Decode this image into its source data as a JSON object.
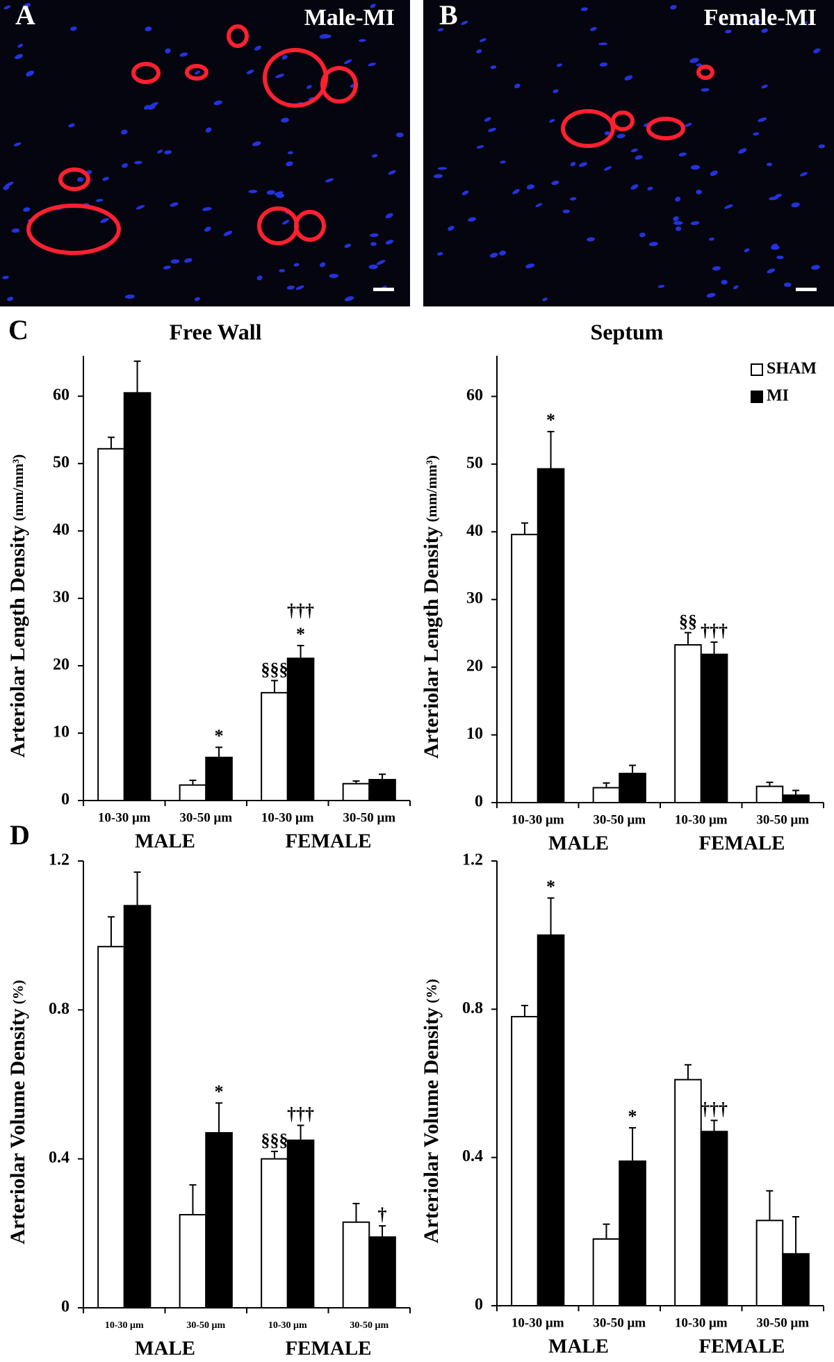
{
  "panels": [
    {
      "letter": "A",
      "label": "Male-MI"
    },
    {
      "letter": "B",
      "label": "Female-MI"
    }
  ],
  "chart_data": [
    {
      "type": "bar",
      "panel_label": "C",
      "title": "Free Wall",
      "ylabel": "Arteriolar Length Density",
      "yunit": "(mm/mm³)",
      "categories": [
        "10-30 μm",
        "30-50 μm",
        "10-30 μm",
        "30-50 μm"
      ],
      "groups": [
        "MALE",
        "FEMALE"
      ],
      "ylim": [
        0,
        66
      ],
      "yticks": [
        0,
        10,
        20,
        30,
        40,
        50,
        60
      ],
      "series": [
        {
          "name": "SHAM",
          "color": "#ffffff",
          "values": [
            52.2,
            2.3,
            16,
            2.5
          ],
          "errors": [
            1.7,
            0.7,
            1.8,
            0.4
          ],
          "annotations": [
            null,
            null,
            [
              "§§§"
            ],
            null
          ]
        },
        {
          "name": "MI",
          "color": "#000000",
          "values": [
            60.5,
            6.4,
            21.1,
            3.1
          ],
          "errors": [
            4.7,
            1.5,
            1.9,
            0.8
          ],
          "annotations": [
            null,
            [
              "*"
            ],
            [
              "†††",
              "*"
            ],
            null
          ]
        }
      ]
    },
    {
      "type": "bar",
      "title": "Septum",
      "ylabel": "Arteriolar Length Density",
      "yunit": "(mm/mm³)",
      "legend": "top-right",
      "categories": [
        "10-30 μm",
        "30-50 μm",
        "10-30 μm",
        "30-50 μm"
      ],
      "groups": [
        "MALE",
        "FEMALE"
      ],
      "ylim": [
        0,
        66
      ],
      "yticks": [
        0,
        10,
        20,
        30,
        40,
        50,
        60
      ],
      "series": [
        {
          "name": "SHAM",
          "color": "#ffffff",
          "values": [
            39.6,
            2.2,
            23.3,
            2.4
          ],
          "errors": [
            1.7,
            0.7,
            1.8,
            0.6
          ],
          "annotations": [
            null,
            null,
            [
              "§§"
            ],
            null
          ]
        },
        {
          "name": "MI",
          "color": "#000000",
          "values": [
            49.3,
            4.3,
            21.9,
            1.1
          ],
          "errors": [
            5.5,
            1.2,
            1.8,
            0.7
          ],
          "annotations": [
            [
              "*"
            ],
            null,
            [
              "†††"
            ],
            null
          ]
        }
      ]
    },
    {
      "type": "bar",
      "panel_label": "D",
      "ylabel": "Arteriolar Volume Density",
      "yunit": "(%)",
      "categories": [
        "10-30 μm",
        "30-50 μm",
        "10-30 μm",
        "30-50 μm"
      ],
      "groups": [
        "MALE",
        "FEMALE"
      ],
      "ylim": [
        0,
        1.2
      ],
      "yticks": [
        0,
        0.4,
        0.8,
        1.2
      ],
      "series": [
        {
          "name": "SHAM",
          "color": "#ffffff",
          "values": [
            0.97,
            0.25,
            0.4,
            0.23
          ],
          "errors": [
            0.08,
            0.08,
            0.02,
            0.05
          ],
          "annotations": [
            null,
            null,
            [
              "§§§"
            ],
            null
          ]
        },
        {
          "name": "MI",
          "color": "#000000",
          "values": [
            1.08,
            0.47,
            0.45,
            0.19
          ],
          "errors": [
            0.09,
            0.08,
            0.04,
            0.03
          ],
          "annotations": [
            null,
            [
              "*"
            ],
            [
              "†††"
            ],
            [
              "†"
            ]
          ]
        }
      ]
    },
    {
      "type": "bar",
      "ylabel": "Arteriolar Volume Density",
      "yunit": "(%)",
      "categories": [
        "10-30 μm",
        "30-50 μm",
        "10-30 μm",
        "30-50 μm"
      ],
      "groups": [
        "MALE",
        "FEMALE"
      ],
      "ylim": [
        0,
        1.2
      ],
      "yticks": [
        0,
        0.4,
        0.8,
        1.2
      ],
      "series": [
        {
          "name": "SHAM",
          "color": "#ffffff",
          "values": [
            0.78,
            0.18,
            0.61,
            0.23
          ],
          "errors": [
            0.03,
            0.04,
            0.04,
            0.08
          ],
          "annotations": [
            null,
            null,
            null,
            null
          ]
        },
        {
          "name": "MI",
          "color": "#000000",
          "values": [
            1.0,
            0.39,
            0.47,
            0.14
          ],
          "errors": [
            0.1,
            0.09,
            0.03,
            0.1
          ],
          "annotations": [
            [
              "*"
            ],
            [
              "*"
            ],
            [
              "†††"
            ],
            null
          ]
        }
      ]
    }
  ]
}
